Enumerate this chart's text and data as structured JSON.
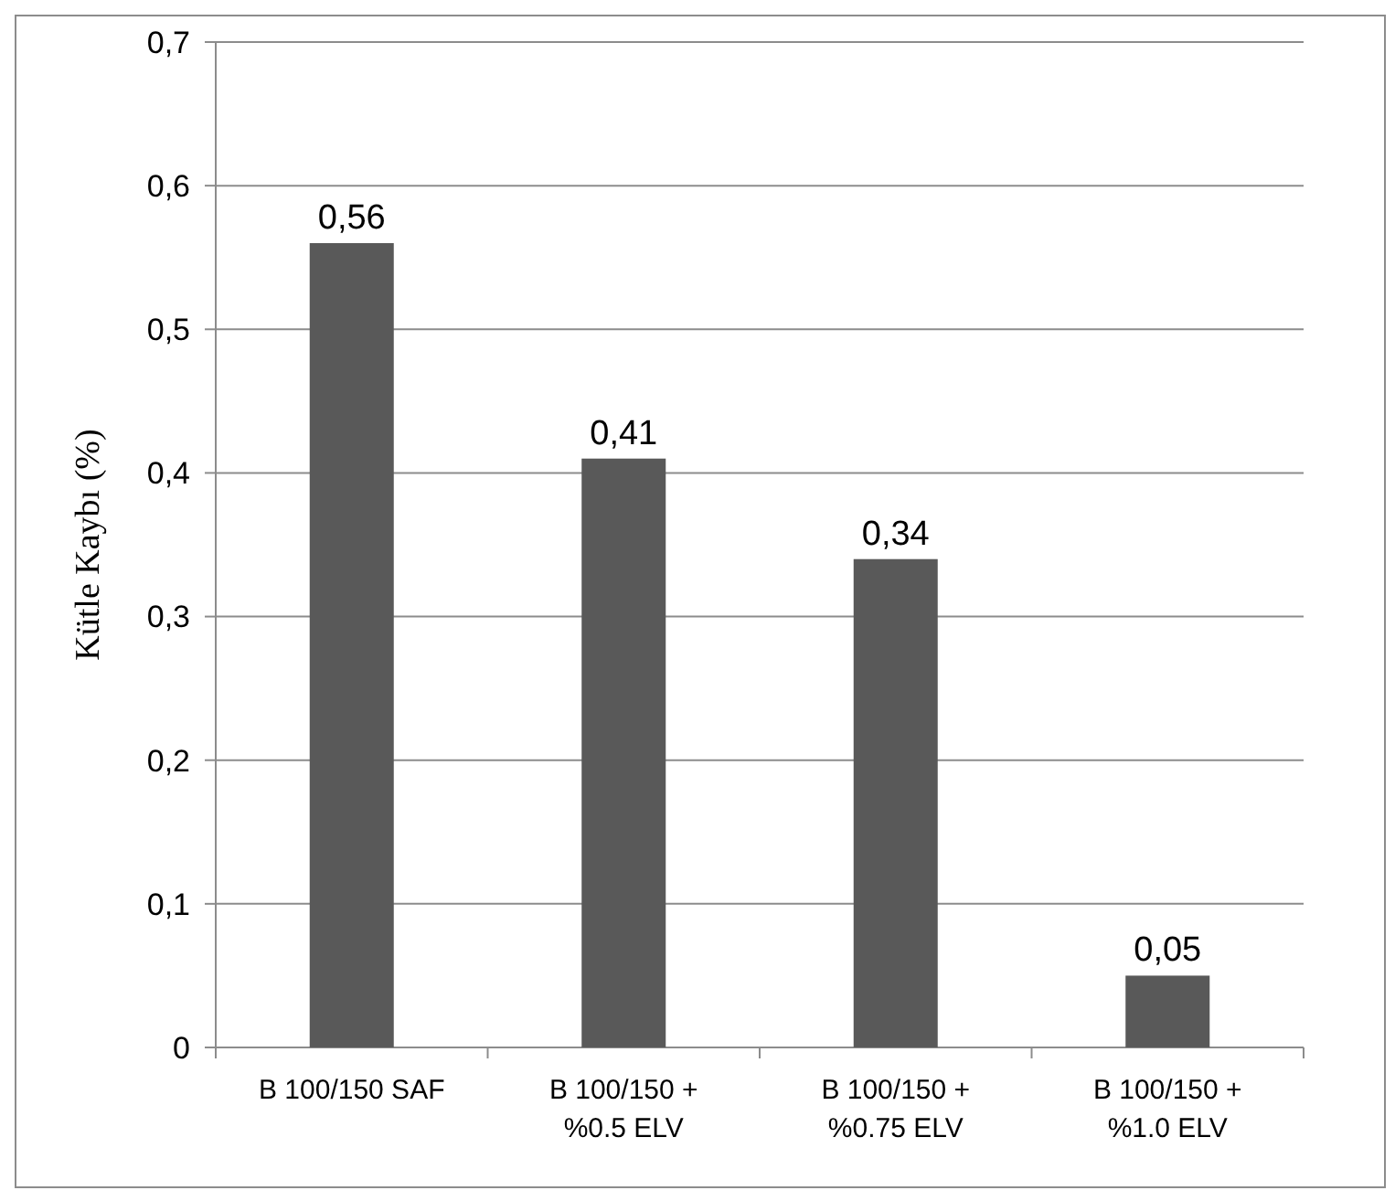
{
  "chart_data": {
    "type": "bar",
    "ylabel": "Kütle Kaybı  (%)",
    "categories": [
      "B 100/150 SAF",
      "B 100/150 + %0.5 ELV",
      "B 100/150 + %0.75 ELV",
      "B 100/150 + %1.0 ELV"
    ],
    "values": [
      0.56,
      0.41,
      0.34,
      0.05
    ],
    "color": "#595959",
    "value_labels": [
      "0,56",
      "0,41",
      "0,34",
      "0,05"
    ],
    "ylim": [
      0,
      0.7
    ],
    "yticks": [
      {
        "value": 0,
        "label": "0"
      },
      {
        "value": 0.1,
        "label": "0,1"
      },
      {
        "value": 0.2,
        "label": "0,2"
      },
      {
        "value": 0.3,
        "label": "0,3"
      },
      {
        "value": 0.4,
        "label": "0,4"
      },
      {
        "value": 0.5,
        "label": "0,5"
      },
      {
        "value": 0.6,
        "label": "0,6"
      },
      {
        "value": 0.7,
        "label": "0,7"
      }
    ],
    "grid": "y"
  }
}
